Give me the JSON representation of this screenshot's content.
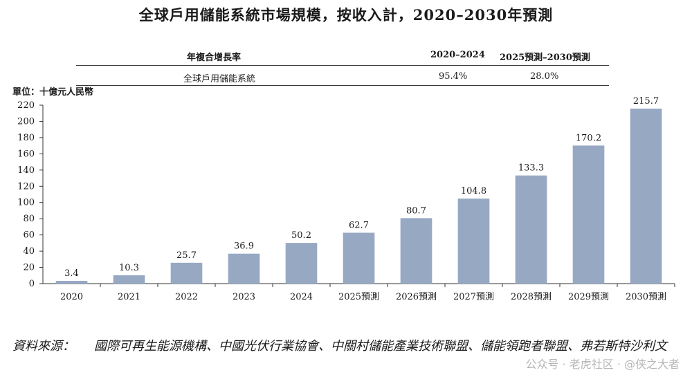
{
  "title": "全球戶用儲能系統市場規模，按收入計，2020–2030年預測",
  "cagr_table": {
    "header_label": "年複合增長率",
    "header_col1": "2020–2024",
    "header_col2": "2025預測–2030預測",
    "row_label": "全球戶用儲能系統",
    "row_col1": "95.4%",
    "row_col2": "28.0%"
  },
  "unit_label": "單位：十億元人民幣",
  "chart_data": {
    "type": "bar",
    "categories": [
      "2020",
      "2021",
      "2022",
      "2023",
      "2024",
      "2025預測",
      "2026預測",
      "2027預測",
      "2028預測",
      "2029預測",
      "2030預測"
    ],
    "values": [
      3.4,
      10.3,
      25.7,
      36.9,
      50.2,
      62.7,
      80.7,
      104.8,
      133.3,
      170.2,
      215.7
    ],
    "value_labels": [
      "3.4",
      "10.3",
      "25.7",
      "36.9",
      "50.2",
      "62.7",
      "80.7",
      "104.8",
      "133.3",
      "170.2",
      "215.7"
    ],
    "yticks": [
      "0",
      "20",
      "40",
      "60",
      "80",
      "100",
      "120",
      "140",
      "160",
      "180",
      "200",
      "220"
    ],
    "ylim": [
      0,
      220
    ],
    "bar_color": "#97a8c3",
    "grid": false
  },
  "source": {
    "label": "資料來源：",
    "text": "國際可再生能源機構、中國光伏行業協會、中關村儲能產業技術聯盟、儲能領跑者聯盟、弗若斯特沙利文"
  },
  "watermark": "公众号 · 老虎社区 · @侠之大者"
}
